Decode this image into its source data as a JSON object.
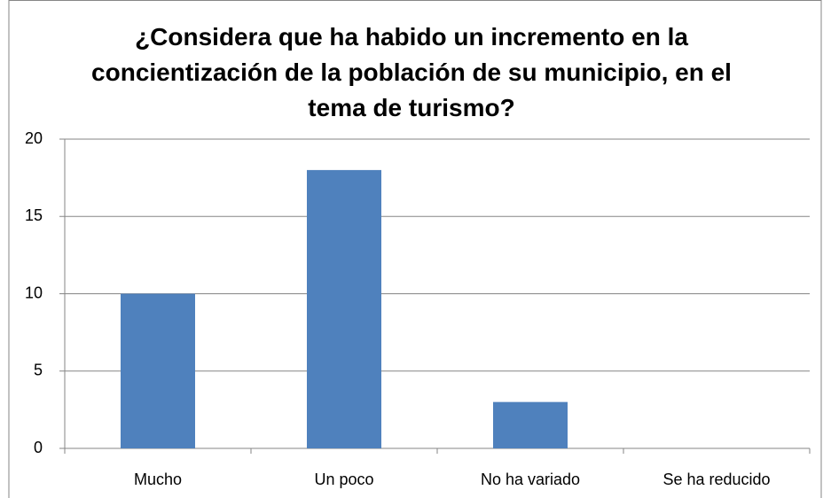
{
  "chart_data": {
    "type": "bar",
    "title": "¿Considera que ha habido un incremento en la concientización de la población de su municipio, en el tema de turismo?",
    "categories": [
      "Mucho",
      "Un poco",
      "No ha variado",
      "Se ha reducido"
    ],
    "values": [
      10,
      18,
      3,
      0
    ],
    "color": "#4f81bd",
    "ylim": [
      0,
      20
    ],
    "yticks": [
      0,
      5,
      10,
      15,
      20
    ],
    "grid": true
  }
}
